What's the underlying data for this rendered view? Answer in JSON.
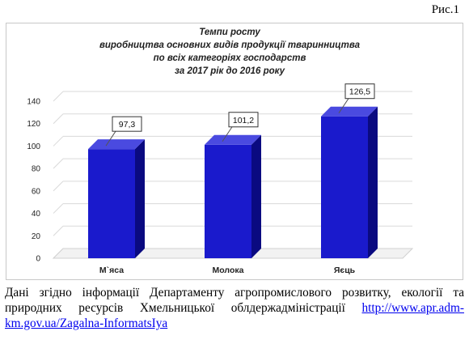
{
  "figure_label": "Рис.1",
  "chart_data": {
    "type": "bar",
    "title_lines": [
      "Темпи росту",
      "виробництва основних видів продукції тваринництва",
      "по всіх категоріях господарств",
      "за 2017 рік до 2016 року"
    ],
    "categories": [
      "М`яса",
      "Молока",
      "Яєць"
    ],
    "values": [
      97.3,
      101.2,
      126.5
    ],
    "value_labels": [
      "97,3",
      "101,2",
      "126,5"
    ],
    "yticks": [
      "0",
      "20",
      "40",
      "60",
      "80",
      "100",
      "120",
      "140"
    ],
    "ylim": [
      0,
      140
    ],
    "xlabel": "",
    "ylabel": "",
    "grid": true,
    "legend": "none",
    "bar_color": "#1a1acc",
    "bar_side_color": "#0a0a80",
    "bar_top_color": "#4a4ae0"
  },
  "caption": {
    "text": "Дані згідно інформації Департаменту агропромислового розвитку, екології та природних ресурсів Хмельницької облдержадміністрації ",
    "link_text": "http://www.apr.adm-km.gov.ua/Zagalna-InformatsIya"
  }
}
